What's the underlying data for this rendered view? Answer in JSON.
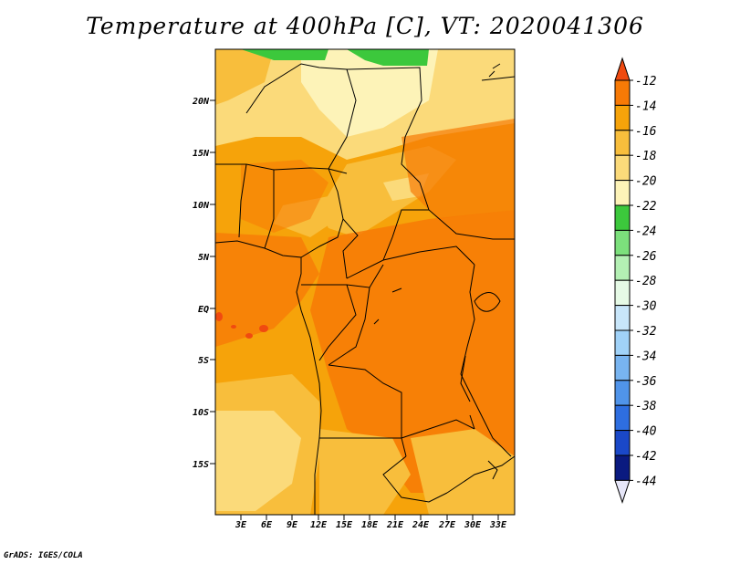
{
  "title": "Temperature at 400hPa [C], VT: 2020041306",
  "credit": "GrADS: IGES/COLA",
  "map": {
    "y_ticks": [
      "20N",
      "15N",
      "10N",
      "5N",
      "EQ",
      "5S",
      "10S",
      "15S"
    ],
    "x_ticks": [
      "3E",
      "6E",
      "9E",
      "12E",
      "15E",
      "18E",
      "21E",
      "24E",
      "27E",
      "30E",
      "33E"
    ]
  },
  "colorbar": {
    "levels": [
      "-12",
      "-14",
      "-16",
      "-18",
      "-20",
      "-22",
      "-24",
      "-26",
      "-28",
      "-30",
      "-32",
      "-34",
      "-36",
      "-38",
      "-40",
      "-42",
      "-44"
    ],
    "colors": {
      "above_-12": "#f04a10",
      "-14_-12": "#f77a06",
      "-16_-14": "#f6a30a",
      "-18_-16": "#f8be3c",
      "-20_-18": "#fbda7a",
      "-22_-20": "#fdf3b8",
      "-24_-22": "#3cc83c",
      "-26_-24": "#7ce07c",
      "-28_-26": "#b4f0b4",
      "-30_-28": "#e6fae6",
      "-32_-30": "#c8e6fa",
      "-34_-32": "#a0d2f8",
      "-36_-34": "#78b4f0",
      "-38_-36": "#5094ea",
      "-40_-38": "#2e6ee0",
      "-42_-40": "#1a48c8",
      "-44_-42": "#0a1a80",
      "below_-44": "#e6e6f8"
    }
  }
}
